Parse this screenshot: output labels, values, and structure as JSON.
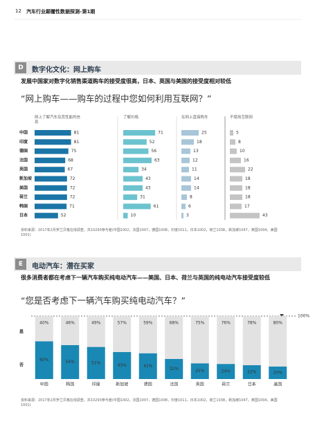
{
  "page_header": {
    "page_number": "12",
    "title": "汽车行业颠覆性数据探测–第1期"
  },
  "section_d": {
    "letter": "D",
    "title": "数字化文化：网上购车",
    "subtitle": "发展中国家对数字化销售渠道购车的接受度很高，日本、英国与美国的接受度相对较低",
    "question": "“网上购车——购车的过程中您如何利用互联网？”",
    "source": "资料来源：2017年2月罗兰贝格在线调查，共10293参与者(中国1002，法国1007，德国1008，印度1011，日本1002，荷兰1038，新加坡1047，英国1004，美国1001)"
  },
  "section_e": {
    "letter": "E",
    "title": "电动汽车：潜在买家",
    "subtitle": "很多消费者都在考虑下一辆汽车购买纯电动汽车——美国、日本、荷兰与英国的纯电动汽车接受度较低",
    "question": "“您是否考虑下一辆汽车购买纯电动汽车？”",
    "source": "资料来源：2017年2月罗兰贝格在线调查，共10293参与者(中国1002，法国1007，德国1008，印度1011，日本1002，荷兰1038，新加坡1047，英国1004，美国1001)"
  },
  "chart_data": [
    {
      "type": "bar",
      "orientation": "horizontal",
      "categories": [
        "中国",
        "印度",
        "德国",
        "法国",
        "英国",
        "新加坡",
        "美国",
        "荷兰",
        "韩国",
        "日本"
      ],
      "series": [
        {
          "name": "网上了解汽车及其性能的信息",
          "color": "#1b75a6",
          "values": [
            81,
            81,
            75,
            68,
            67,
            72,
            72,
            72,
            71,
            52
          ]
        },
        {
          "name": "了解价格",
          "color": "#6cc3cf",
          "values": [
            71,
            52,
            56,
            63,
            34,
            43,
            43,
            31,
            61,
            10
          ]
        },
        {
          "name": "在网上直接购车",
          "color": "#a8c6d8",
          "values": [
            25,
            18,
            13,
            12,
            11,
            14,
            14,
            8,
            6,
            3
          ]
        },
        {
          "name": "不使用互联网",
          "color": "#c4c4c4",
          "values": [
            5,
            8,
            10,
            16,
            22,
            18,
            18,
            18,
            17,
            43
          ]
        }
      ]
    },
    {
      "type": "bar",
      "stacked": true,
      "categories": [
        "中国",
        "韩国",
        "印度",
        "新加坡",
        "德国",
        "法国",
        "英国",
        "荷兰",
        "日本",
        "美国"
      ],
      "series": [
        {
          "name": "否",
          "color": "#1a88b4",
          "values": [
            60,
            54,
            51,
            43,
            41,
            32,
            25,
            24,
            22,
            20
          ],
          "value_labels": [
            "60%",
            "54%",
            "51%",
            "43%",
            "41%",
            "32%",
            "25%",
            "24%",
            "22%",
            "20%"
          ]
        },
        {
          "name": "是",
          "color": "#e2e2e2",
          "values": [
            40,
            46,
            49,
            57,
            59,
            68,
            75,
            76,
            78,
            80
          ],
          "value_labels": [
            "40%",
            "46%",
            "49%",
            "57%",
            "59%",
            "68%",
            "75%",
            "76%",
            "78%",
            "80%"
          ]
        }
      ],
      "ylim": [
        0,
        100
      ],
      "yticks": [
        {
          "value": 100,
          "label": "100%"
        }
      ]
    }
  ]
}
